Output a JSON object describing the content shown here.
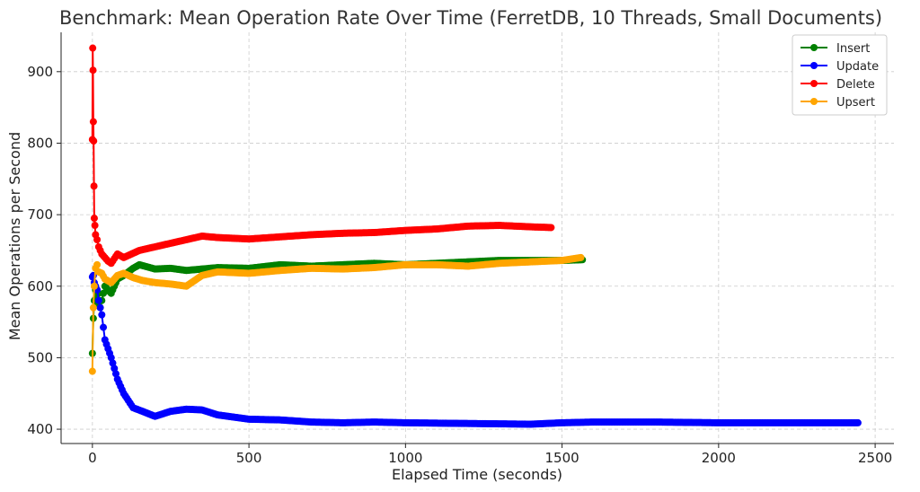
{
  "chart_data": {
    "type": "line",
    "title": "Benchmark: Mean Operation Rate Over Time (FerretDB, 10 Threads, Small Documents)",
    "xlabel": "Elapsed Time (seconds)",
    "ylabel": "Mean Operations per Second",
    "xlim": [
      -100,
      2560
    ],
    "ylim": [
      380,
      955
    ],
    "xticks": [
      0,
      500,
      1000,
      1500,
      2000,
      2500
    ],
    "yticks": [
      400,
      500,
      600,
      700,
      800,
      900
    ],
    "xtick_labels": [
      "0",
      "500",
      "1000",
      "1500",
      "2000",
      "2500"
    ],
    "ytick_labels": [
      "400",
      "500",
      "600",
      "700",
      "800",
      "900"
    ],
    "grid": true,
    "legend_position": "top-right",
    "series": [
      {
        "name": "Insert",
        "color": "#008000",
        "x": [
          0,
          3,
          6,
          10,
          15,
          20,
          25,
          30,
          40,
          50,
          60,
          80,
          100,
          130,
          150,
          200,
          250,
          300,
          350,
          400,
          500,
          600,
          700,
          800,
          900,
          1000,
          1100,
          1200,
          1300,
          1400,
          1500,
          1565
        ],
        "y": [
          506,
          555,
          580,
          595,
          575,
          590,
          570,
          580,
          600,
          595,
          590,
          610,
          615,
          625,
          630,
          624,
          625,
          622,
          624,
          626,
          625,
          630,
          628,
          630,
          632,
          630,
          632,
          634,
          636,
          636,
          636,
          637
        ]
      },
      {
        "name": "Update",
        "color": "#0000ff",
        "x": [
          0,
          3,
          6,
          10,
          15,
          20,
          30,
          40,
          60,
          80,
          100,
          130,
          160,
          200,
          250,
          300,
          350,
          400,
          500,
          600,
          700,
          800,
          900,
          1000,
          1200,
          1400,
          1500,
          1600,
          1800,
          2000,
          2200,
          2445
        ],
        "y": [
          613,
          615,
          605,
          600,
          595,
          580,
          560,
          525,
          500,
          470,
          450,
          430,
          425,
          418,
          425,
          428,
          427,
          420,
          414,
          413,
          410,
          409,
          410,
          409,
          408,
          407,
          409,
          410,
          410,
          409,
          409,
          409
        ]
      },
      {
        "name": "Delete",
        "color": "#ff0000",
        "x": [
          0,
          1,
          2,
          3,
          4,
          5,
          6,
          8,
          10,
          15,
          20,
          30,
          40,
          50,
          60,
          80,
          100,
          150,
          200,
          250,
          300,
          350,
          400,
          500,
          600,
          700,
          800,
          900,
          1000,
          1100,
          1200,
          1300,
          1400,
          1465
        ],
        "y": [
          805,
          933,
          902,
          830,
          803,
          740,
          695,
          685,
          672,
          665,
          655,
          645,
          640,
          635,
          632,
          645,
          640,
          650,
          655,
          660,
          665,
          670,
          668,
          666,
          669,
          672,
          674,
          675,
          678,
          680,
          684,
          685,
          683,
          682
        ]
      },
      {
        "name": "Upsert",
        "color": "#ffa500",
        "x": [
          0,
          3,
          6,
          10,
          15,
          20,
          30,
          40,
          60,
          80,
          100,
          130,
          160,
          200,
          250,
          300,
          350,
          400,
          500,
          600,
          700,
          800,
          900,
          1000,
          1100,
          1200,
          1300,
          1400,
          1500,
          1560
        ],
        "y": [
          481,
          570,
          600,
          625,
          630,
          620,
          618,
          610,
          605,
          615,
          618,
          612,
          608,
          605,
          603,
          600,
          615,
          620,
          618,
          622,
          625,
          624,
          626,
          630,
          630,
          628,
          632,
          634,
          636,
          640
        ]
      }
    ]
  }
}
